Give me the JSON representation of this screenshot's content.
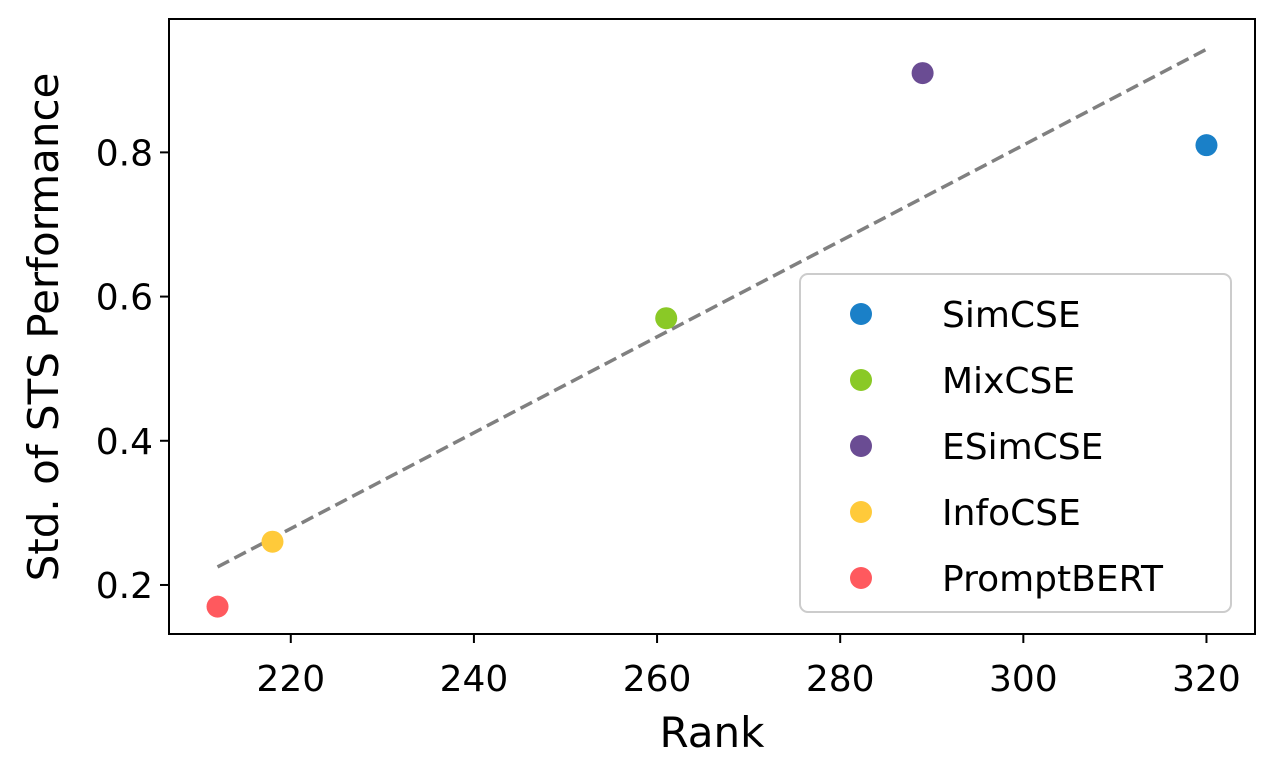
{
  "chart_data": {
    "type": "scatter",
    "xlabel": "Rank",
    "ylabel": "Std. of STS Performance",
    "xlim": [
      206.7,
      325.3
    ],
    "ylim": [
      0.132,
      0.985
    ],
    "x_ticks": [
      220,
      240,
      260,
      280,
      300,
      320
    ],
    "y_ticks": [
      0.2,
      0.4,
      0.6,
      0.8
    ],
    "x_tick_labels": [
      "220",
      "240",
      "260",
      "280",
      "300",
      "320"
    ],
    "y_tick_labels": [
      "0.2",
      "0.4",
      "0.6",
      "0.8"
    ],
    "grid": false,
    "legend_position": "bottom-right",
    "series": [
      {
        "name": "SimCSE",
        "color": "#1a80c8",
        "points": [
          {
            "x": 320,
            "y": 0.81
          }
        ]
      },
      {
        "name": "MixCSE",
        "color": "#8ac926",
        "points": [
          {
            "x": 261,
            "y": 0.57
          }
        ]
      },
      {
        "name": "ESimCSE",
        "color": "#6a4c93",
        "points": [
          {
            "x": 289,
            "y": 0.91
          }
        ]
      },
      {
        "name": "InfoCSE",
        "color": "#ffca3a",
        "points": [
          {
            "x": 218,
            "y": 0.26
          }
        ]
      },
      {
        "name": "PromptBERT",
        "color": "#ff595e",
        "points": [
          {
            "x": 212,
            "y": 0.17
          }
        ]
      }
    ],
    "trendline": {
      "style": "dashed",
      "color": "#808080",
      "x": [
        212,
        320
      ],
      "y": [
        0.225,
        0.943
      ]
    }
  }
}
